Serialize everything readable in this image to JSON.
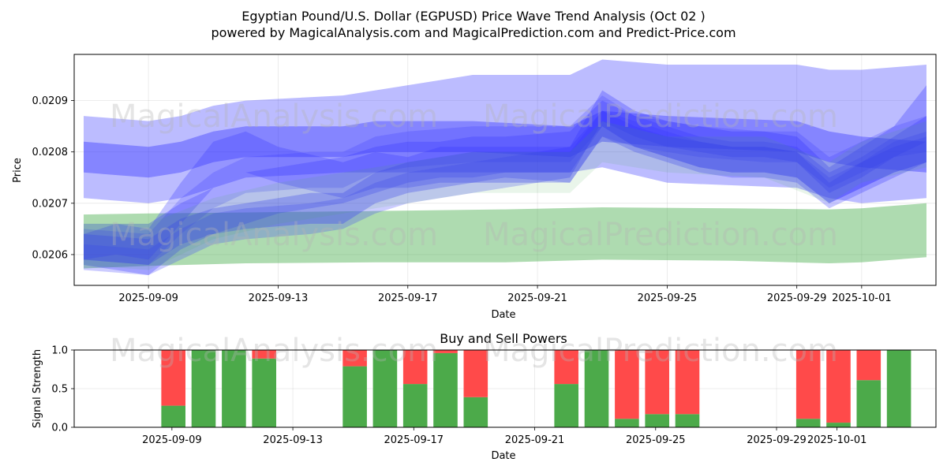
{
  "title": {
    "line1": "Egyptian Pound/U.S. Dollar (EGPUSD) Price Wave Trend Analysis (Oct 02 )",
    "line2": "powered by MagicalAnalysis.com and MagicalPrediction.com and Predict-Price.com"
  },
  "watermark": {
    "left": "MagicalAnalysis.com",
    "right": "MagicalPrediction.com"
  },
  "colors": {
    "blue_band": "#3333ff",
    "green_band": "#4caf50",
    "buy": "#4caa4a",
    "sell": "#ff4a4a"
  },
  "chart_data": [
    {
      "type": "area",
      "name": "price-wave-chart",
      "xlabel": "Date",
      "ylabel": "Price",
      "x_range": [
        "2025-09-07",
        "2025-10-03"
      ],
      "ylim": [
        0.02054,
        0.02099
      ],
      "y_ticks": [
        0.0206,
        0.0207,
        0.0208,
        0.0209
      ],
      "y_tick_labels": [
        "0.0206",
        "0.0207",
        "0.0208",
        "0.0209"
      ],
      "x_ticks": [
        "2025-09-09",
        "2025-09-13",
        "2025-09-17",
        "2025-09-21",
        "2025-09-25",
        "2025-09-29",
        "2025-10-01"
      ],
      "grid": true,
      "bands": [
        {
          "name": "wide-blue-band",
          "color": "blue",
          "opacity": 0.33,
          "x": [
            "2025-09-07",
            "2025-09-09",
            "2025-09-10",
            "2025-09-11",
            "2025-09-12",
            "2025-09-15",
            "2025-09-16",
            "2025-09-18",
            "2025-09-19",
            "2025-09-22",
            "2025-09-23",
            "2025-09-25",
            "2025-09-29",
            "2025-09-30",
            "2025-10-01",
            "2025-10-03"
          ],
          "upper": [
            0.02087,
            0.02086,
            0.02087,
            0.02089,
            0.0209,
            0.02091,
            0.02092,
            0.02094,
            0.02095,
            0.02095,
            0.02098,
            0.02097,
            0.02097,
            0.02096,
            0.02096,
            0.02097
          ],
          "lower": [
            0.02071,
            0.0207,
            0.02071,
            0.02073,
            0.02075,
            0.02076,
            0.02076,
            0.02076,
            0.02076,
            0.02076,
            0.02077,
            0.02074,
            0.02073,
            0.02071,
            0.0207,
            0.02071
          ]
        },
        {
          "name": "medium-blue-band",
          "color": "blue",
          "opacity": 0.4,
          "x": [
            "2025-09-07",
            "2025-09-09",
            "2025-09-10",
            "2025-09-11",
            "2025-09-12",
            "2025-09-15",
            "2025-09-16",
            "2025-09-18",
            "2025-09-19",
            "2025-09-22",
            "2025-09-23",
            "2025-09-25",
            "2025-09-29",
            "2025-09-30",
            "2025-10-01",
            "2025-10-03"
          ],
          "upper": [
            0.02082,
            0.02081,
            0.02082,
            0.02084,
            0.02085,
            0.02085,
            0.02086,
            0.02086,
            0.02086,
            0.02085,
            0.02088,
            0.02087,
            0.02086,
            0.02084,
            0.02083,
            0.02082
          ],
          "lower": [
            0.02076,
            0.02075,
            0.02076,
            0.02078,
            0.02079,
            0.02079,
            0.0208,
            0.0208,
            0.0208,
            0.02079,
            0.02082,
            0.02081,
            0.0208,
            0.02078,
            0.02077,
            0.02076
          ]
        },
        {
          "name": "green-band",
          "color": "green",
          "opacity": 0.45,
          "x": [
            "2025-09-07",
            "2025-09-09",
            "2025-09-12",
            "2025-09-16",
            "2025-09-20",
            "2025-09-23",
            "2025-09-27",
            "2025-09-30",
            "2025-10-01",
            "2025-10-03"
          ],
          "upper": [
            0.020678,
            0.02068,
            0.020682,
            0.020685,
            0.020688,
            0.020692,
            0.02069,
            0.020688,
            0.02069,
            0.0207
          ],
          "lower": [
            0.020573,
            0.020578,
            0.020583,
            0.020585,
            0.020585,
            0.02059,
            0.020588,
            0.020583,
            0.020585,
            0.020595
          ]
        },
        {
          "name": "rising-blue-band",
          "color": "blue",
          "opacity": 0.28,
          "x": [
            "2025-09-07",
            "2025-09-08",
            "2025-09-09",
            "2025-09-10",
            "2025-09-11",
            "2025-09-12",
            "2025-09-13",
            "2025-09-15",
            "2025-09-16",
            "2025-09-17",
            "2025-09-18",
            "2025-09-19",
            "2025-09-20",
            "2025-09-22",
            "2025-09-23",
            "2025-09-24",
            "2025-09-25",
            "2025-09-26",
            "2025-09-27",
            "2025-09-28",
            "2025-09-29",
            "2025-09-30",
            "2025-10-01",
            "2025-10-02",
            "2025-10-03"
          ],
          "upper": [
            0.02066,
            0.02066,
            0.02066,
            0.0207,
            0.02073,
            0.02076,
            0.02077,
            0.02079,
            0.02081,
            0.02082,
            0.02082,
            0.02083,
            0.02083,
            0.02084,
            0.0209,
            0.02087,
            0.02085,
            0.02083,
            0.02082,
            0.02082,
            0.02081,
            0.02076,
            0.02079,
            0.02083,
            0.02087
          ],
          "lower": [
            0.02058,
            0.02057,
            0.02056,
            0.02061,
            0.02064,
            0.02066,
            0.02068,
            0.0207,
            0.02072,
            0.02074,
            0.02075,
            0.02075,
            0.02076,
            0.02076,
            0.02085,
            0.02081,
            0.02079,
            0.02077,
            0.02076,
            0.02076,
            0.02075,
            0.0207,
            0.02073,
            0.02076,
            0.02078
          ]
        },
        {
          "name": "mid-blue-band",
          "color": "blue",
          "opacity": 0.28,
          "x": [
            "2025-09-07",
            "2025-09-08",
            "2025-09-09",
            "2025-09-10",
            "2025-09-11",
            "2025-09-12",
            "2025-09-13",
            "2025-09-15",
            "2025-09-16",
            "2025-09-17",
            "2025-09-18",
            "2025-09-19",
            "2025-09-20",
            "2025-09-22",
            "2025-09-23",
            "2025-09-24",
            "2025-09-25",
            "2025-09-26",
            "2025-09-27",
            "2025-09-28",
            "2025-09-29",
            "2025-09-30",
            "2025-10-01",
            "2025-10-02",
            "2025-10-03"
          ],
          "upper": [
            0.02064,
            0.02066,
            0.02065,
            0.02074,
            0.02082,
            0.02084,
            0.02081,
            0.02078,
            0.0208,
            0.02079,
            0.02081,
            0.02081,
            0.02081,
            0.02081,
            0.02088,
            0.02085,
            0.02083,
            0.02082,
            0.02081,
            0.02081,
            0.0208,
            0.02074,
            0.02078,
            0.02081,
            0.02083
          ],
          "lower": [
            0.02059,
            0.0206,
            0.02059,
            0.02066,
            0.02073,
            0.02076,
            0.02074,
            0.02071,
            0.02073,
            0.02073,
            0.02074,
            0.02074,
            0.02075,
            0.02074,
            0.02083,
            0.0208,
            0.02078,
            0.02076,
            0.02075,
            0.02075,
            0.02074,
            0.02069,
            0.02072,
            0.02075,
            0.02078
          ]
        },
        {
          "name": "lower-blue-band",
          "color": "blue",
          "opacity": 0.25,
          "x": [
            "2025-09-07",
            "2025-09-09",
            "2025-09-10",
            "2025-09-11",
            "2025-09-12",
            "2025-09-14",
            "2025-09-15",
            "2025-09-16",
            "2025-09-17",
            "2025-09-18",
            "2025-09-19",
            "2025-09-20",
            "2025-09-21",
            "2025-09-22",
            "2025-09-23",
            "2025-09-24",
            "2025-09-25",
            "2025-09-26",
            "2025-09-27",
            "2025-09-28",
            "2025-09-29",
            "2025-09-30",
            "2025-10-01",
            "2025-10-02",
            "2025-10-03"
          ],
          "upper": [
            0.02062,
            0.02061,
            0.02065,
            0.02068,
            0.02069,
            0.0207,
            0.02071,
            0.02074,
            0.02076,
            0.02077,
            0.02078,
            0.02079,
            0.0208,
            0.0208,
            0.02088,
            0.02086,
            0.02084,
            0.02082,
            0.02081,
            0.02081,
            0.0208,
            0.02075,
            0.02078,
            0.02082,
            0.02084
          ],
          "lower": [
            0.02057,
            0.02056,
            0.02059,
            0.02062,
            0.02063,
            0.02064,
            0.02065,
            0.02068,
            0.0207,
            0.02071,
            0.02072,
            0.02073,
            0.02074,
            0.02074,
            0.02083,
            0.02081,
            0.02079,
            0.02077,
            0.02076,
            0.02076,
            0.02075,
            0.0207,
            0.02073,
            0.02076,
            0.02078
          ]
        },
        {
          "name": "spike-blue-band",
          "color": "blue",
          "opacity": 0.3,
          "x": [
            "2025-09-07",
            "2025-09-09",
            "2025-09-10",
            "2025-09-11",
            "2025-09-12",
            "2025-09-14",
            "2025-09-15",
            "2025-09-16",
            "2025-09-17",
            "2025-09-19",
            "2025-09-21",
            "2025-09-22",
            "2025-09-23",
            "2025-09-24",
            "2025-09-25",
            "2025-09-26",
            "2025-09-27",
            "2025-09-28",
            "2025-09-29",
            "2025-09-30",
            "2025-10-01",
            "2025-10-02",
            "2025-10-03"
          ],
          "upper": [
            0.02064,
            0.02063,
            0.02067,
            0.02069,
            0.0207,
            0.02072,
            0.02072,
            0.02076,
            0.02078,
            0.0208,
            0.0208,
            0.02081,
            0.02092,
            0.02088,
            0.02086,
            0.02085,
            0.02084,
            0.02084,
            0.02083,
            0.02077,
            0.02081,
            0.02085,
            0.02093
          ],
          "lower": [
            0.02059,
            0.02058,
            0.02062,
            0.02064,
            0.02065,
            0.02066,
            0.02066,
            0.0207,
            0.02072,
            0.02074,
            0.02074,
            0.02075,
            0.02086,
            0.02083,
            0.02081,
            0.0208,
            0.02079,
            0.02079,
            0.02078,
            0.02072,
            0.02075,
            0.02079,
            0.02082
          ]
        },
        {
          "name": "upper-mid-blue-band",
          "color": "blue",
          "opacity": 0.22,
          "x": [
            "2025-09-07",
            "2025-09-09",
            "2025-09-10",
            "2025-09-11",
            "2025-09-12",
            "2025-09-14",
            "2025-09-15",
            "2025-09-16",
            "2025-09-17",
            "2025-09-19",
            "2025-09-22",
            "2025-09-23",
            "2025-09-24",
            "2025-09-26",
            "2025-09-28",
            "2025-09-29",
            "2025-09-30",
            "2025-10-01",
            "2025-10-02",
            "2025-10-03"
          ],
          "upper": [
            0.02065,
            0.02064,
            0.02071,
            0.02076,
            0.02079,
            0.0208,
            0.0208,
            0.02083,
            0.02084,
            0.02085,
            0.02085,
            0.02091,
            0.02087,
            0.02085,
            0.02084,
            0.02084,
            0.02079,
            0.02082,
            0.02085,
            0.02087
          ],
          "lower": [
            0.02059,
            0.02058,
            0.02064,
            0.02069,
            0.02072,
            0.02073,
            0.02073,
            0.02076,
            0.02077,
            0.02078,
            0.02078,
            0.02085,
            0.02081,
            0.02079,
            0.02078,
            0.02078,
            0.02073,
            0.02076,
            0.02079,
            0.0208
          ]
        },
        {
          "name": "light-green-band",
          "color": "green",
          "opacity": 0.12,
          "x": [
            "2025-09-07",
            "2025-09-09",
            "2025-09-11",
            "2025-09-13",
            "2025-09-16",
            "2025-09-19",
            "2025-09-22",
            "2025-09-23",
            "2025-09-25",
            "2025-09-28",
            "2025-09-30",
            "2025-10-01",
            "2025-10-03"
          ],
          "upper": [
            0.02066,
            0.02066,
            0.02071,
            0.02074,
            0.02077,
            0.0208,
            0.0208,
            0.02086,
            0.02083,
            0.02083,
            0.02078,
            0.02082,
            0.02086
          ],
          "lower": [
            0.02058,
            0.02057,
            0.02063,
            0.02066,
            0.02069,
            0.02072,
            0.02072,
            0.02078,
            0.02076,
            0.02075,
            0.0207,
            0.02074,
            0.02077
          ]
        }
      ]
    },
    {
      "type": "bar",
      "name": "buy-sell-chart",
      "title": "Buy and Sell Powers",
      "xlabel": "Date",
      "ylabel": "Signal Strength",
      "ylim": [
        0,
        1
      ],
      "y_ticks": [
        0,
        0.5,
        1
      ],
      "y_tick_labels": [
        "0.0",
        "0.5",
        "1.0"
      ],
      "x_ticks": [
        "2025-09-09",
        "2025-09-13",
        "2025-09-17",
        "2025-09-21",
        "2025-09-25",
        "2025-09-29",
        "2025-10-01"
      ],
      "x_range": [
        "2025-09-07",
        "2025-10-03"
      ],
      "grid": true,
      "categories": [
        "2025-09-09",
        "2025-09-10",
        "2025-09-11",
        "2025-09-12",
        "2025-09-15",
        "2025-09-16",
        "2025-09-17",
        "2025-09-18",
        "2025-09-19",
        "2025-09-22",
        "2025-09-23",
        "2025-09-24",
        "2025-09-25",
        "2025-09-26",
        "2025-09-30",
        "2025-10-01",
        "2025-10-02",
        "2025-10-03"
      ],
      "series": [
        {
          "name": "Buy",
          "color": "green",
          "values": [
            0.28,
            1.0,
            1.0,
            0.89,
            0.79,
            1.0,
            0.56,
            0.96,
            0.39,
            0.56,
            1.0,
            0.11,
            0.17,
            0.17,
            0.11,
            0.06,
            0.61,
            1.0
          ]
        },
        {
          "name": "Sell",
          "color": "red",
          "values": [
            0.72,
            0.0,
            0.0,
            0.11,
            0.21,
            0.0,
            0.44,
            0.04,
            0.61,
            0.44,
            0.0,
            0.89,
            0.83,
            0.83,
            0.89,
            0.94,
            0.39,
            0.0
          ]
        }
      ]
    }
  ]
}
